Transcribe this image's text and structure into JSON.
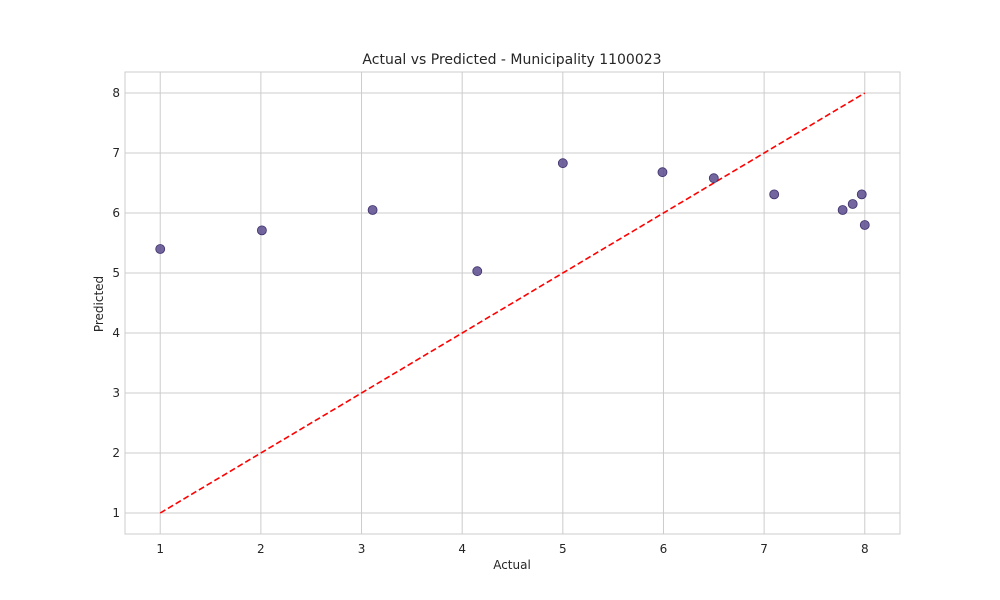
{
  "chart_data": {
    "type": "scatter",
    "title": "Actual vs Predicted - Municipality 1100023",
    "xlabel": "Actual",
    "ylabel": "Predicted",
    "xlim": [
      0.65,
      8.35
    ],
    "ylim": [
      0.65,
      8.35
    ],
    "xticks": [
      "1",
      "2",
      "3",
      "4",
      "5",
      "6",
      "7",
      "8"
    ],
    "yticks": [
      "1",
      "2",
      "3",
      "4",
      "5",
      "6",
      "7",
      "8"
    ],
    "grid": true,
    "point_color": "#5a4a8c",
    "reference_line_color": "#ff0000",
    "reference_line": {
      "style": "dashed",
      "x": [
        1,
        8
      ],
      "y": [
        1,
        8
      ]
    },
    "points": [
      {
        "x": 1.0,
        "y": 5.4
      },
      {
        "x": 2.01,
        "y": 5.71
      },
      {
        "x": 3.11,
        "y": 6.05
      },
      {
        "x": 4.15,
        "y": 5.03
      },
      {
        "x": 5.0,
        "y": 6.83
      },
      {
        "x": 5.99,
        "y": 6.68
      },
      {
        "x": 6.5,
        "y": 6.58
      },
      {
        "x": 7.1,
        "y": 6.31
      },
      {
        "x": 7.78,
        "y": 6.05
      },
      {
        "x": 7.88,
        "y": 6.15
      },
      {
        "x": 7.97,
        "y": 6.31
      },
      {
        "x": 8.0,
        "y": 5.8
      }
    ]
  }
}
